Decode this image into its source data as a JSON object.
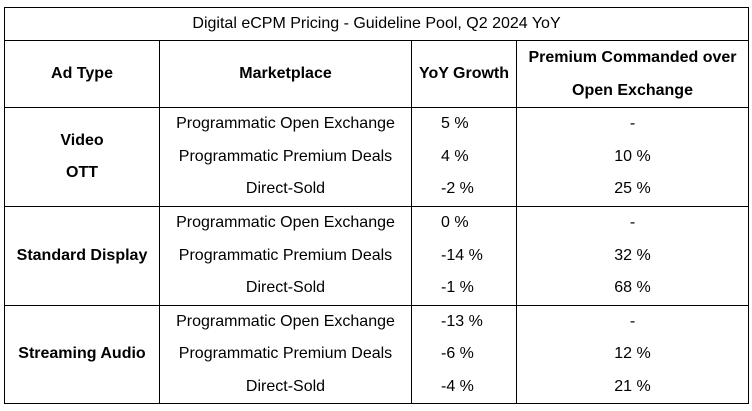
{
  "title": "Digital eCPM Pricing - Guideline Pool, Q2 2024 YoY",
  "headers": {
    "ad_type": "Ad Type",
    "marketplace": "Marketplace",
    "yoy_growth": "YoY Growth",
    "premium_line1": "Premium Commanded over",
    "premium_line2": "Open Exchange"
  },
  "groups": [
    {
      "ad_type_lines": [
        "Video",
        "OTT"
      ],
      "rows": [
        {
          "marketplace": "Programmatic Open Exchange",
          "yoy": "5 %",
          "premium": "-"
        },
        {
          "marketplace": "Programmatic Premium Deals",
          "yoy": "4 %",
          "premium": "10 %"
        },
        {
          "marketplace": "Direct-Sold",
          "yoy": "-2 %",
          "premium": "25 %"
        }
      ]
    },
    {
      "ad_type_lines": [
        "Standard Display"
      ],
      "rows": [
        {
          "marketplace": "Programmatic Open Exchange",
          "yoy": "0 %",
          "premium": "-"
        },
        {
          "marketplace": "Programmatic Premium Deals",
          "yoy": "-14 %",
          "premium": "32 %"
        },
        {
          "marketplace": "Direct-Sold",
          "yoy": "-1 %",
          "premium": "68 %"
        }
      ]
    },
    {
      "ad_type_lines": [
        "Streaming Audio"
      ],
      "rows": [
        {
          "marketplace": "Programmatic Open Exchange",
          "yoy": "-13 %",
          "premium": "-"
        },
        {
          "marketplace": "Programmatic Premium Deals",
          "yoy": "-6 %",
          "premium": "12 %"
        },
        {
          "marketplace": "Direct-Sold",
          "yoy": "-4 %",
          "premium": "21 %"
        }
      ]
    }
  ]
}
